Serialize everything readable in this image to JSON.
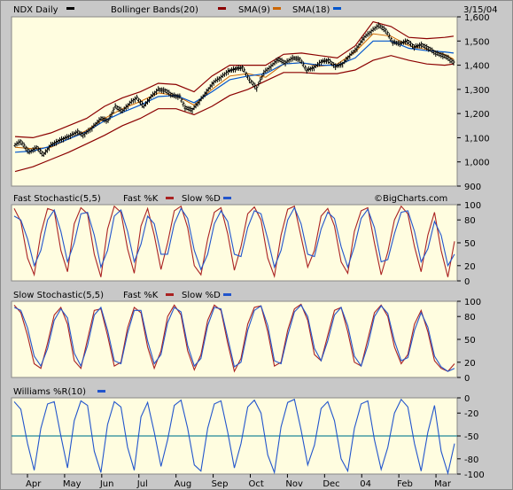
{
  "header": {
    "symbol_label": "NDX Daily",
    "bb_label": "Bollinger Bands(20)",
    "sma9_label": "SMA(9)",
    "sma18_label": "SMA(18)",
    "date_label": "3/15/04"
  },
  "watermark": "©BigCharts.com",
  "colors": {
    "background": "#c8c8c8",
    "plot_bg": "#fffde0",
    "price_bar": "#000000",
    "bollinger": "#8b0000",
    "sma9": "#cc6600",
    "sma18": "#0055cc",
    "fast_k": "#aa2222",
    "slow_d": "#2255cc",
    "williams": "#2255cc",
    "williams_mid": "#228899"
  },
  "chart_data": [
    {
      "type": "line",
      "title": "NDX Daily",
      "ylim": [
        900,
        1600
      ],
      "yticks": [
        900,
        1000,
        1100,
        1200,
        1300,
        1400,
        1500,
        1600
      ],
      "ytick_labels": [
        "900",
        "1,000",
        "1,100",
        "1,200",
        "1,300",
        "1,400",
        "1,500",
        "1,600"
      ],
      "months": [
        "Apr",
        "May",
        "Jun",
        "Jul",
        "Aug",
        "Sep",
        "Oct",
        "Nov",
        "Dec",
        "04",
        "Feb",
        "Mar"
      ],
      "series": [
        {
          "kind": "price",
          "points": [
            [
              0,
              1070
            ],
            [
              3,
              1085
            ],
            [
              8,
              1040
            ],
            [
              12,
              1060
            ],
            [
              16,
              1030
            ],
            [
              20,
              1070
            ],
            [
              25,
              1090
            ],
            [
              30,
              1105
            ],
            [
              35,
              1125
            ],
            [
              38,
              1110
            ],
            [
              43,
              1140
            ],
            [
              48,
              1180
            ],
            [
              52,
              1170
            ],
            [
              56,
              1230
            ],
            [
              60,
              1210
            ],
            [
              65,
              1250
            ],
            [
              68,
              1265
            ],
            [
              72,
              1230
            ],
            [
              76,
              1270
            ],
            [
              80,
              1300
            ],
            [
              84,
              1295
            ],
            [
              88,
              1275
            ],
            [
              92,
              1270
            ],
            [
              95,
              1225
            ],
            [
              99,
              1215
            ],
            [
              103,
              1250
            ],
            [
              107,
              1290
            ],
            [
              111,
              1330
            ],
            [
              115,
              1350
            ],
            [
              119,
              1375
            ],
            [
              123,
              1385
            ],
            [
              127,
              1390
            ],
            [
              131,
              1340
            ],
            [
              135,
              1305
            ],
            [
              139,
              1370
            ],
            [
              143,
              1395
            ],
            [
              147,
              1425
            ],
            [
              151,
              1410
            ],
            [
              155,
              1430
            ],
            [
              159,
              1425
            ],
            [
              163,
              1380
            ],
            [
              167,
              1390
            ],
            [
              171,
              1415
            ],
            [
              175,
              1420
            ],
            [
              179,
              1395
            ],
            [
              183,
              1405
            ],
            [
              187,
              1440
            ],
            [
              191,
              1470
            ],
            [
              195,
              1515
            ],
            [
              199,
              1540
            ],
            [
              203,
              1565
            ],
            [
              207,
              1545
            ],
            [
              211,
              1495
            ],
            [
              215,
              1490
            ],
            [
              219,
              1500
            ],
            [
              223,
              1475
            ],
            [
              227,
              1485
            ],
            [
              231,
              1470
            ],
            [
              235,
              1450
            ],
            [
              239,
              1440
            ],
            [
              242,
              1430
            ],
            [
              245,
              1410
            ]
          ]
        },
        {
          "kind": "bb_upper",
          "points": [
            [
              0,
              1105
            ],
            [
              10,
              1100
            ],
            [
              20,
              1120
            ],
            [
              30,
              1150
            ],
            [
              40,
              1180
            ],
            [
              50,
              1230
            ],
            [
              60,
              1265
            ],
            [
              70,
              1290
            ],
            [
              80,
              1325
            ],
            [
              90,
              1320
            ],
            [
              100,
              1290
            ],
            [
              110,
              1355
            ],
            [
              120,
              1400
            ],
            [
              130,
              1400
            ],
            [
              140,
              1400
            ],
            [
              150,
              1445
            ],
            [
              160,
              1450
            ],
            [
              170,
              1440
            ],
            [
              180,
              1430
            ],
            [
              190,
              1480
            ],
            [
              200,
              1580
            ],
            [
              210,
              1560
            ],
            [
              220,
              1515
            ],
            [
              230,
              1510
            ],
            [
              240,
              1515
            ],
            [
              245,
              1520
            ]
          ]
        },
        {
          "kind": "bb_lower",
          "points": [
            [
              0,
              960
            ],
            [
              10,
              980
            ],
            [
              20,
              1010
            ],
            [
              30,
              1040
            ],
            [
              40,
              1075
            ],
            [
              50,
              1110
            ],
            [
              60,
              1150
            ],
            [
              70,
              1180
            ],
            [
              80,
              1220
            ],
            [
              90,
              1220
            ],
            [
              100,
              1195
            ],
            [
              110,
              1230
            ],
            [
              120,
              1275
            ],
            [
              130,
              1300
            ],
            [
              140,
              1335
            ],
            [
              150,
              1370
            ],
            [
              160,
              1370
            ],
            [
              170,
              1365
            ],
            [
              180,
              1365
            ],
            [
              190,
              1380
            ],
            [
              200,
              1420
            ],
            [
              210,
              1440
            ],
            [
              220,
              1420
            ],
            [
              230,
              1405
            ],
            [
              240,
              1400
            ],
            [
              245,
              1405
            ]
          ]
        },
        {
          "kind": "sma9",
          "points": [
            [
              0,
              1060
            ],
            [
              10,
              1055
            ],
            [
              20,
              1060
            ],
            [
              30,
              1095
            ],
            [
              40,
              1130
            ],
            [
              50,
              1180
            ],
            [
              60,
              1220
            ],
            [
              70,
              1250
            ],
            [
              80,
              1285
            ],
            [
              90,
              1275
            ],
            [
              100,
              1235
            ],
            [
              110,
              1300
            ],
            [
              120,
              1355
            ],
            [
              130,
              1365
            ],
            [
              140,
              1350
            ],
            [
              150,
              1405
            ],
            [
              160,
              1410
            ],
            [
              170,
              1395
            ],
            [
              180,
              1405
            ],
            [
              190,
              1455
            ],
            [
              200,
              1530
            ],
            [
              210,
              1520
            ],
            [
              220,
              1480
            ],
            [
              230,
              1465
            ],
            [
              240,
              1445
            ],
            [
              245,
              1425
            ]
          ]
        },
        {
          "kind": "sma18",
          "points": [
            [
              0,
              1040
            ],
            [
              10,
              1045
            ],
            [
              20,
              1065
            ],
            [
              30,
              1095
            ],
            [
              40,
              1125
            ],
            [
              50,
              1170
            ],
            [
              60,
              1205
            ],
            [
              70,
              1235
            ],
            [
              80,
              1270
            ],
            [
              90,
              1275
            ],
            [
              100,
              1245
            ],
            [
              110,
              1290
            ],
            [
              120,
              1340
            ],
            [
              130,
              1355
            ],
            [
              140,
              1365
            ],
            [
              150,
              1405
            ],
            [
              160,
              1410
            ],
            [
              170,
              1400
            ],
            [
              180,
              1400
            ],
            [
              190,
              1430
            ],
            [
              200,
              1500
            ],
            [
              210,
              1500
            ],
            [
              220,
              1470
            ],
            [
              230,
              1460
            ],
            [
              240,
              1455
            ],
            [
              245,
              1450
            ]
          ]
        }
      ]
    },
    {
      "type": "line",
      "title": "Fast Stochastic(5,5)",
      "legend": [
        "Fast %K",
        "Slow %D"
      ],
      "ylim": [
        0,
        100
      ],
      "yticks": [
        0,
        20,
        50,
        80,
        100
      ],
      "series": [
        {
          "name": "Fast %K",
          "values": [
            95,
            78,
            30,
            8,
            62,
            95,
            92,
            40,
            12,
            75,
            96,
            88,
            35,
            5,
            68,
            98,
            90,
            42,
            10,
            72,
            95,
            60,
            15,
            50,
            92,
            98,
            70,
            20,
            8,
            55,
            90,
            96,
            62,
            14,
            45,
            88,
            97,
            80,
            30,
            6,
            60,
            94,
            98,
            58,
            18,
            40,
            85,
            95,
            72,
            25,
            10,
            65,
            92,
            96,
            50,
            8,
            38,
            80,
            98,
            88,
            45,
            12,
            60,
            90,
            40,
            5,
            52
          ]
        },
        {
          "name": "Slow %D",
          "values": [
            85,
            80,
            55,
            20,
            40,
            80,
            93,
            65,
            25,
            50,
            88,
            90,
            60,
            18,
            40,
            85,
            93,
            65,
            25,
            48,
            85,
            75,
            35,
            35,
            75,
            95,
            82,
            40,
            15,
            35,
            75,
            92,
            78,
            35,
            32,
            70,
            92,
            88,
            55,
            18,
            40,
            80,
            96,
            75,
            35,
            32,
            68,
            90,
            82,
            45,
            18,
            45,
            82,
            94,
            70,
            25,
            28,
            62,
            90,
            92,
            65,
            25,
            42,
            78,
            60,
            20,
            35
          ]
        }
      ]
    },
    {
      "type": "line",
      "title": "Slow Stochastic(5,5)",
      "legend": [
        "Fast %K",
        "Slow %D"
      ],
      "ylim": [
        0,
        100
      ],
      "yticks": [
        0,
        20,
        50,
        80,
        100
      ],
      "series": [
        {
          "name": "Fast %K",
          "values": [
            95,
            85,
            55,
            18,
            12,
            45,
            82,
            92,
            70,
            22,
            12,
            50,
            88,
            90,
            55,
            15,
            20,
            65,
            92,
            85,
            40,
            12,
            35,
            80,
            95,
            82,
            35,
            10,
            30,
            75,
            95,
            88,
            45,
            8,
            25,
            70,
            92,
            94,
            60,
            15,
            20,
            62,
            90,
            96,
            75,
            30,
            22,
            55,
            88,
            92,
            60,
            20,
            15,
            50,
            85,
            95,
            80,
            40,
            18,
            30,
            70,
            88,
            60,
            22,
            12,
            8,
            18
          ]
        },
        {
          "name": "Slow %D",
          "values": [
            92,
            88,
            65,
            28,
            15,
            38,
            75,
            90,
            78,
            32,
            15,
            42,
            82,
            92,
            62,
            22,
            18,
            58,
            88,
            88,
            48,
            18,
            30,
            72,
            92,
            86,
            42,
            15,
            25,
            68,
            92,
            90,
            52,
            14,
            20,
            62,
            88,
            94,
            68,
            22,
            18,
            55,
            86,
            95,
            80,
            38,
            22,
            48,
            82,
            92,
            68,
            28,
            15,
            42,
            80,
            94,
            84,
            48,
            22,
            26,
            62,
            85,
            66,
            28,
            14,
            8,
            12
          ]
        }
      ]
    },
    {
      "type": "line",
      "title": "Williams %R(10)",
      "ylim": [
        -100,
        0
      ],
      "yticks": [
        -100,
        -80,
        -50,
        -20,
        0
      ],
      "ytick_labels": [
        "-100",
        "-80",
        "-50",
        "-20",
        "0"
      ],
      "months": [
        "Apr",
        "May",
        "Jun",
        "Jul",
        "Aug",
        "Sep",
        "Oct",
        "Nov",
        "Dec",
        "04",
        "Feb",
        "Mar"
      ],
      "series": [
        {
          "name": "Williams %R",
          "values": [
            -5,
            -15,
            -60,
            -95,
            -40,
            -8,
            -5,
            -50,
            -92,
            -30,
            -4,
            -10,
            -70,
            -98,
            -35,
            -5,
            -12,
            -65,
            -95,
            -25,
            -6,
            -45,
            -90,
            -55,
            -10,
            -3,
            -40,
            -88,
            -96,
            -40,
            -8,
            -4,
            -45,
            -92,
            -60,
            -12,
            -3,
            -20,
            -75,
            -98,
            -38,
            -6,
            -2,
            -42,
            -88,
            -62,
            -14,
            -5,
            -30,
            -80,
            -96,
            -40,
            -8,
            -4,
            -55,
            -94,
            -65,
            -20,
            -2,
            -12,
            -60,
            -96,
            -45,
            -10,
            -70,
            -99,
            -60
          ]
        }
      ]
    }
  ]
}
